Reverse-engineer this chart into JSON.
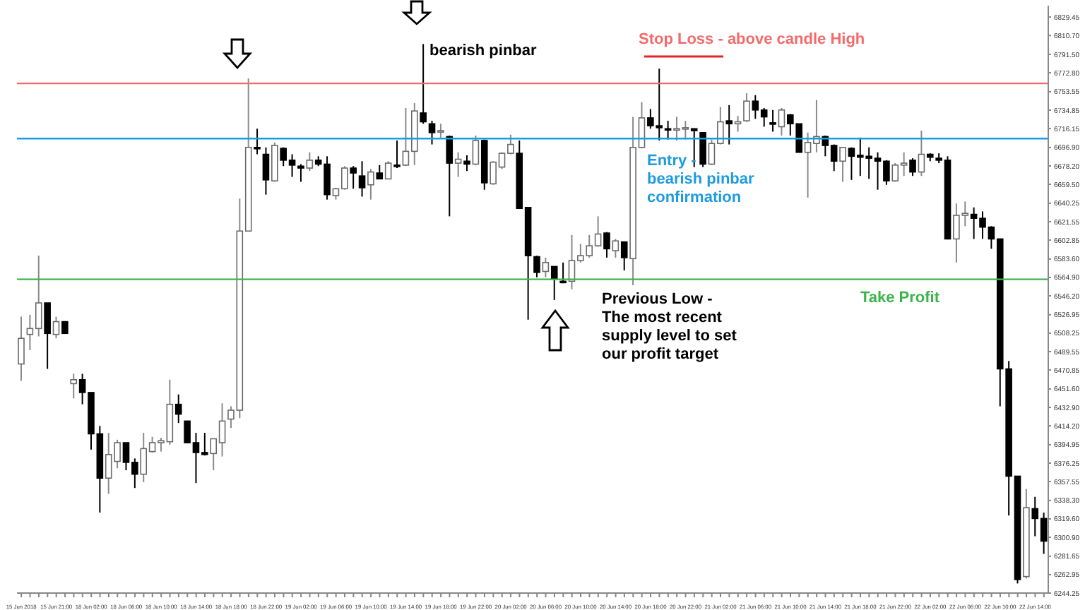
{
  "chart_data": {
    "type": "candlestick",
    "categories": [
      "15 Jun 2018",
      null,
      null,
      null,
      "15 Jun 21:00",
      null,
      null,
      null,
      "18 Jun 02:00",
      null,
      null,
      null,
      "18 Jun 06:00",
      null,
      null,
      null,
      "18 Jun 10:00",
      null,
      null,
      null,
      "18 Jun 14:00",
      null,
      null,
      null,
      "18 Jun 18:00",
      null,
      null,
      null,
      "18 Jun 22:00",
      null,
      null,
      null,
      "19 Jun 02:00",
      null,
      null,
      null,
      "19 Jun 06:00",
      null,
      null,
      null,
      "19 Jun 10:00",
      null,
      null,
      null,
      "19 Jun 14:00",
      null,
      null,
      null,
      "19 Jun 18:00",
      null,
      null,
      null,
      "19 Jun 22:00",
      null,
      null,
      null,
      "20 Jun 02:00",
      null,
      null,
      null,
      "20 Jun 06:00",
      null,
      null,
      null,
      "20 Jun 10:00",
      null,
      null,
      null,
      "20 Jun 14:00",
      null,
      null,
      null,
      "20 Jun 18:00",
      null,
      null,
      null,
      "20 Jun 22:00",
      null,
      null,
      null,
      "21 Jun 02:00",
      null,
      null,
      null,
      "21 Jun 06:00",
      null,
      null,
      null,
      "21 Jun 10:00",
      null,
      null,
      null,
      "21 Jun 14:00",
      null,
      null,
      null,
      "21 Jun 18:00",
      null,
      null,
      null,
      "21 Jun 22:00",
      null,
      null,
      null,
      "22 Jun 02:00",
      null,
      null,
      null,
      "22 Jun 06:00",
      null,
      null,
      null,
      "22 Jun 10:00",
      null,
      null,
      null,
      "22 Jun 14:00",
      null
    ],
    "ohlc": [
      [
        6477,
        6525,
        6460,
        6503
      ],
      [
        6507,
        6527,
        6491,
        6513
      ],
      [
        6513,
        6587,
        6505,
        6539
      ],
      [
        6539,
        6539,
        6472,
        6508
      ],
      [
        6507,
        6525,
        6503,
        6520
      ],
      [
        6520,
        6520,
        6508,
        6508
      ],
      [
        6457,
        6467,
        6442,
        6461
      ],
      [
        6461,
        6467,
        6436,
        6448
      ],
      [
        6448,
        6448,
        6390,
        6406
      ],
      [
        6406,
        6414,
        6326,
        6361
      ],
      [
        6361,
        6407,
        6345,
        6385
      ],
      [
        6378,
        6400,
        6371,
        6397
      ],
      [
        6397,
        6397,
        6369,
        6377
      ],
      [
        6377,
        6381,
        6351,
        6365
      ],
      [
        6365,
        6407,
        6357,
        6391
      ],
      [
        6388,
        6403,
        6387,
        6397
      ],
      [
        6397,
        6402,
        6388,
        6399
      ],
      [
        6398,
        6461,
        6395,
        6436
      ],
      [
        6436,
        6446,
        6417,
        6426
      ],
      [
        6419,
        6419,
        6397,
        6397
      ],
      [
        6397,
        6407,
        6356,
        6387
      ],
      [
        6387,
        6407,
        6384,
        6385
      ],
      [
        6386,
        6401,
        6369,
        6401
      ],
      [
        6397,
        6437,
        6383,
        6419
      ],
      [
        6421,
        6434,
        6412,
        6430
      ],
      [
        6430,
        6645,
        6422,
        6612
      ],
      [
        6612,
        6767,
        6612,
        6697
      ],
      [
        6697,
        6716,
        6690,
        6696
      ],
      [
        6690,
        6697,
        6649,
        6664
      ],
      [
        6663,
        6702,
        6662,
        6699
      ],
      [
        6696,
        6697,
        6678,
        6684
      ],
      [
        6684,
        6690,
        6667,
        6679
      ],
      [
        6678,
        6680,
        6662,
        6676
      ],
      [
        6676,
        6692,
        6673,
        6684
      ],
      [
        6684,
        6688,
        6678,
        6680
      ],
      [
        6680,
        6688,
        6644,
        6649
      ],
      [
        6648,
        6656,
        6644,
        6655
      ],
      [
        6655,
        6678,
        6654,
        6676
      ],
      [
        6676,
        6678,
        6655,
        6671
      ],
      [
        6668,
        6683,
        6647,
        6656
      ],
      [
        6659,
        6675,
        6644,
        6672
      ],
      [
        6671,
        6679,
        6665,
        6665
      ],
      [
        6665,
        6683,
        6665,
        6681
      ],
      [
        6679,
        6704,
        6676,
        6678
      ],
      [
        6679,
        6737,
        6678,
        6693
      ],
      [
        6693,
        6742,
        6679,
        6734
      ],
      [
        6732,
        6802,
        6721,
        6723
      ],
      [
        6721,
        6724,
        6700,
        6712
      ],
      [
        6713,
        6721,
        6707,
        6714
      ],
      [
        6708,
        6709,
        6627,
        6681
      ],
      [
        6681,
        6692,
        6667,
        6685
      ],
      [
        6683,
        6689,
        6673,
        6680
      ],
      [
        6680,
        6709,
        6679,
        6704
      ],
      [
        6704,
        6705,
        6654,
        6661
      ],
      [
        6660,
        6683,
        6659,
        6682
      ],
      [
        6677,
        6692,
        6675,
        6691
      ],
      [
        6691,
        6710,
        6690,
        6700
      ],
      [
        6691,
        6704,
        6635,
        6635
      ],
      [
        6636,
        6636,
        6522,
        6587
      ],
      [
        6586,
        6587,
        6565,
        6570
      ],
      [
        6571,
        6585,
        6565,
        6580
      ],
      [
        6576,
        6576,
        6542,
        6563
      ],
      [
        6561,
        6580,
        6559,
        6560
      ],
      [
        6561,
        6608,
        6553,
        6582
      ],
      [
        6582,
        6599,
        6580,
        6587
      ],
      [
        6587,
        6608,
        6585,
        6597
      ],
      [
        6597,
        6627,
        6596,
        6609
      ],
      [
        6610,
        6611,
        6585,
        6594
      ],
      [
        6592,
        6604,
        6585,
        6602
      ],
      [
        6601,
        6601,
        6572,
        6585
      ],
      [
        6584,
        6728,
        6557,
        6697
      ],
      [
        6697,
        6743,
        6696,
        6727
      ],
      [
        6727,
        6736,
        6716,
        6719
      ],
      [
        6719,
        6777,
        6704,
        6717
      ],
      [
        6716,
        6724,
        6705,
        6715
      ],
      [
        6715,
        6728,
        6704,
        6716
      ],
      [
        6716,
        6724,
        6705,
        6717
      ],
      [
        6716,
        6716,
        6677,
        6714
      ],
      [
        6712,
        6712,
        6677,
        6680
      ],
      [
        6680,
        6705,
        6679,
        6701
      ],
      [
        6701,
        6738,
        6700,
        6723
      ],
      [
        6724,
        6740,
        6700,
        6721
      ],
      [
        6721,
        6729,
        6713,
        6723
      ],
      [
        6724,
        6752,
        6723,
        6744
      ],
      [
        6744,
        6750,
        6726,
        6735
      ],
      [
        6735,
        6737,
        6718,
        6728
      ],
      [
        6722,
        6735,
        6713,
        6721
      ],
      [
        6718,
        6737,
        6709,
        6735
      ],
      [
        6730,
        6731,
        6709,
        6721
      ],
      [
        6721,
        6721,
        6692,
        6692
      ],
      [
        6692,
        6712,
        6646,
        6702
      ],
      [
        6701,
        6745,
        6692,
        6708
      ],
      [
        6708,
        6709,
        6688,
        6699
      ],
      [
        6699,
        6700,
        6673,
        6683
      ],
      [
        6683,
        6697,
        6662,
        6697
      ],
      [
        6696,
        6697,
        6664,
        6688
      ],
      [
        6689,
        6707,
        6668,
        6687
      ],
      [
        6688,
        6697,
        6665,
        6686
      ],
      [
        6686,
        6692,
        6654,
        6683
      ],
      [
        6683,
        6684,
        6659,
        6663
      ],
      [
        6663,
        6681,
        6662,
        6679
      ],
      [
        6679,
        6692,
        6668,
        6681
      ],
      [
        6684,
        6686,
        6668,
        6672
      ],
      [
        6672,
        6714,
        6668,
        6690
      ],
      [
        6690,
        6691,
        6683,
        6687
      ],
      [
        6686,
        6691,
        6681,
        6684
      ],
      [
        6684,
        6688,
        6604,
        6604
      ],
      [
        6604,
        6640,
        6580,
        6628
      ],
      [
        6628,
        6642,
        6617,
        6630
      ],
      [
        6629,
        6636,
        6604,
        6625
      ],
      [
        6625,
        6632,
        6604,
        6616
      ],
      [
        6616,
        6617,
        6594,
        6604
      ],
      [
        6604,
        6604,
        6434,
        6472
      ],
      [
        6472,
        6480,
        6323,
        6363
      ],
      [
        6363,
        6363,
        6254,
        6258
      ],
      [
        6261,
        6350,
        6259,
        6331
      ],
      [
        6330,
        6342,
        6302,
        6320
      ],
      [
        6320,
        6326,
        6284,
        6297
      ]
    ],
    "ylim": [
      6244.25,
      6841
    ],
    "yticks": [
      6829.45,
      {
        "value": 6810.7,
        "label": "6810.70"
      },
      {
        "value": 6791.5,
        "label": "6791.50"
      },
      {
        "value": 6772.8,
        "label": "6772.80"
      },
      6753.55,
      6734.85,
      6716.15,
      {
        "value": 6696.9,
        "label": "6696.90"
      },
      {
        "value": 6678.2,
        "label": "6678.20"
      },
      {
        "value": 6659.5,
        "label": "6659.50"
      },
      6640.25,
      6621.55,
      6602.85,
      {
        "value": 6583.6,
        "label": "6583.60"
      },
      {
        "value": 6564.9,
        "label": "6564.90"
      },
      {
        "value": 6546.2,
        "label": "6546.20"
      },
      6526.95,
      6508.25,
      6489.55,
      6470.85,
      {
        "value": 6451.6,
        "label": "6451.60"
      },
      {
        "value": 6432.9,
        "label": "6432.90"
      },
      {
        "value": 6414.2,
        "label": "6414.20"
      },
      6394.95,
      6376.25,
      6357.55,
      {
        "value": 6338.3,
        "label": "6338.30"
      },
      {
        "value": 6319.6,
        "label": "6319.60"
      },
      {
        "value": 6300.9,
        "label": "6300.90"
      },
      6281.65,
      6262.95,
      6244.25
    ],
    "ref_lines": [
      {
        "axis": "y",
        "value": 6762,
        "label": "Stop Loss - above candle High",
        "color": "#f26b6b"
      },
      {
        "axis": "y",
        "value": 6706,
        "label": "Entry -\nbearish pinbar\nconfirmation",
        "color": "#1e9be0"
      },
      {
        "axis": "y",
        "value": 6563,
        "label": "Take Profit",
        "color": "#3cb44b"
      }
    ],
    "annotations": [
      "bearish pinbar",
      "Previous Low -\nThe most recent\nsupply level to set\nour profit target"
    ]
  }
}
